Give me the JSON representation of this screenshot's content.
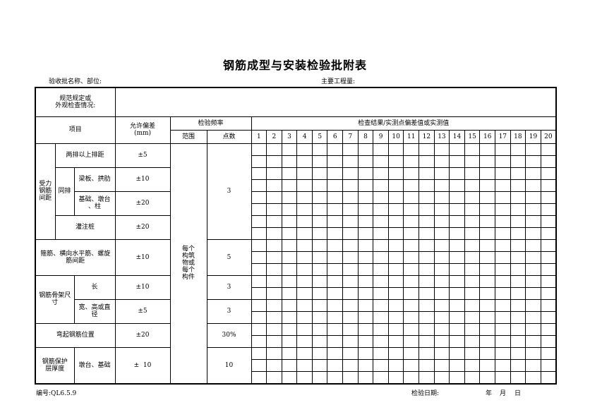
{
  "title": "钢筋成型与安装检验批附表",
  "batch_label": "验收批名称、部位:",
  "main_quantity_label": "主要工程量:",
  "spec_label": "规范规定或\n外观检查情况:",
  "header": {
    "item": "项目",
    "tolerance": "允许偏差\n(mm)",
    "frequency": "检验频率",
    "range": "范围",
    "points": "点数",
    "results": "检查结果/实测点偏差值或实测值",
    "point_numbers": [
      "1",
      "2",
      "3",
      "4",
      "5",
      "6",
      "7",
      "8",
      "9",
      "10",
      "11",
      "12",
      "13",
      "14",
      "15",
      "16",
      "17",
      "18",
      "19",
      "20"
    ]
  },
  "rows": {
    "group_spacing": "受力\n钢筋\n间距",
    "two_rows": "两排以上排距",
    "two_rows_tol": "±5",
    "same_row": "同排",
    "beam": "梁板、拱肋",
    "beam_tol": "±10",
    "foundation": "基础、墩台\n、柱",
    "foundation_tol": "±20",
    "pile": "灌注桩",
    "pile_tol": "±20",
    "spacing_points": "3",
    "stirrup": "箍筋、横向水平筋、螺旋\n筋间距",
    "stirrup_tol": "±10",
    "stirrup_points": "5",
    "cage": "钢筋骨架尺\n寸",
    "length": "长",
    "length_tol": "±10",
    "length_points": "3",
    "width": "宽、高或直\n径",
    "width_tol": "±5",
    "width_points": "3",
    "bent": "弯起钢筋位置",
    "bent_tol": "±20",
    "bent_points": "30%",
    "cover": "钢筋保护\n层厚度",
    "cover_sub": "墩台、基础",
    "cover_tol": "±  10",
    "cover_points": "10",
    "range_value": "每个\n构筑\n物或\n每个\n构件"
  },
  "footer": {
    "code": "编号:QL6.5.9",
    "date_label": "检验日期:",
    "year": "年",
    "month": "月",
    "day": "日"
  }
}
